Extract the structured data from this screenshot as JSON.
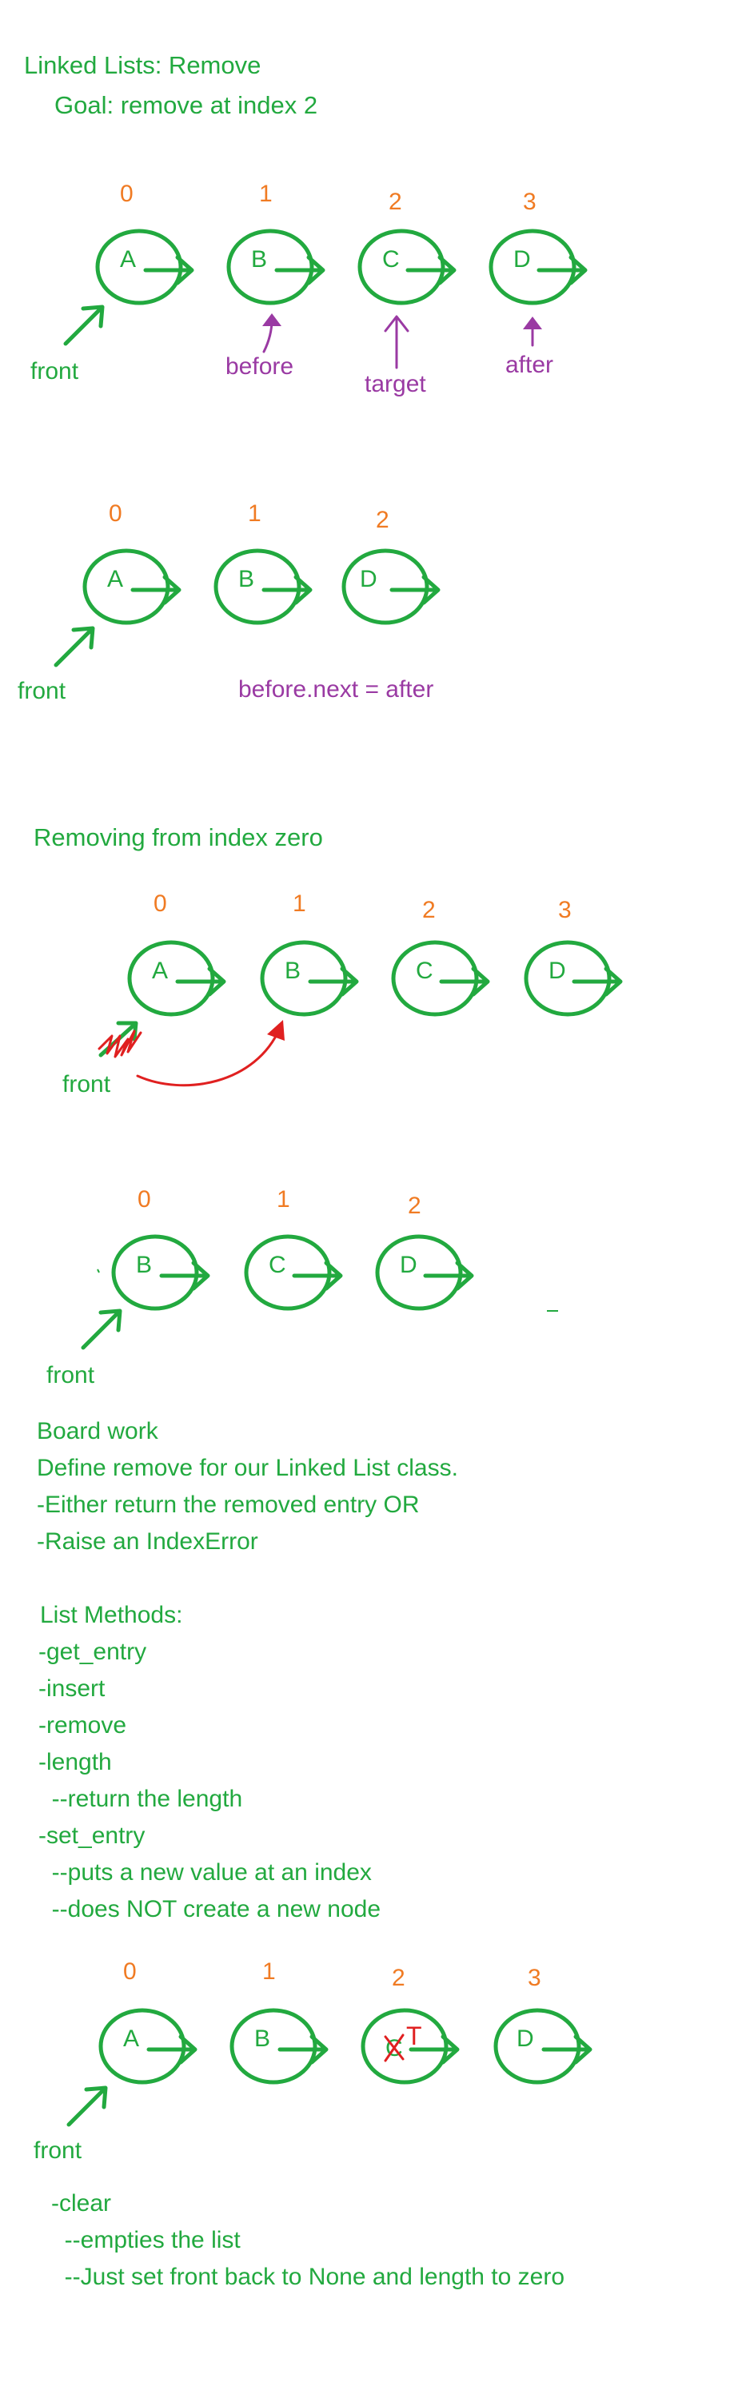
{
  "title": "Linked Lists: Remove",
  "goal": "Goal: remove at index 2",
  "diagram1": {
    "indices": [
      "0",
      "1",
      "2",
      "3"
    ],
    "nodes": [
      "A",
      "B",
      "C",
      "D"
    ],
    "front": "front",
    "labels": {
      "before": "before",
      "target": "target",
      "after": "after"
    }
  },
  "diagram2": {
    "indices": [
      "0",
      "1",
      "2"
    ],
    "nodes": [
      "A",
      "B",
      "D"
    ],
    "front": "front",
    "code": "before.next = after"
  },
  "section2_title": "Removing from index zero",
  "diagram3": {
    "indices": [
      "0",
      "1",
      "2",
      "3"
    ],
    "nodes": [
      "A",
      "B",
      "C",
      "D"
    ],
    "front": "front"
  },
  "diagram4": {
    "indices": [
      "0",
      "1",
      "2"
    ],
    "nodes": [
      "B",
      "C",
      "D"
    ],
    "front": "front"
  },
  "board_work": {
    "title": "Board work",
    "lines": [
      "Define remove for our Linked List class.",
      "-Either return the removed entry OR",
      "-Raise an IndexError"
    ]
  },
  "list_methods": {
    "title": "List Methods:",
    "lines": [
      "-get_entry",
      "-insert",
      "-remove",
      "-length",
      "  --return the length",
      "-set_entry",
      "  --puts a new value at an index",
      "  --does NOT create a new node"
    ]
  },
  "diagram5": {
    "indices": [
      "0",
      "1",
      "2",
      "3"
    ],
    "nodes": [
      "A",
      "B",
      "C",
      "D"
    ],
    "replacement": "T",
    "front": "front"
  },
  "clear": {
    "lines": [
      "-clear",
      "  --empties the list",
      "  --Just set front back to None and length to zero"
    ]
  },
  "colors": {
    "green": "#22a93f",
    "orange": "#f07b23",
    "purple": "#9a3aa3",
    "red": "#e02020"
  }
}
